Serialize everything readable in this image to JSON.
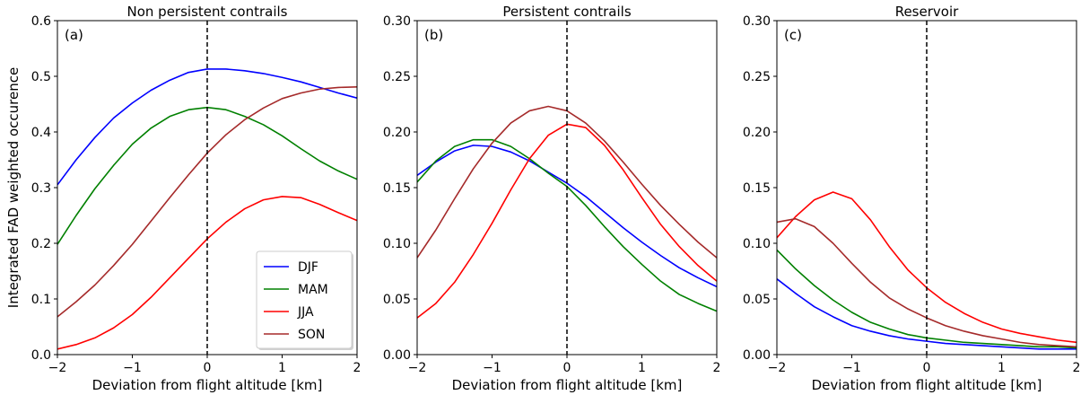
{
  "chart_data": [
    {
      "type": "line",
      "panel_label": "(a)",
      "title": "Non persistent contrails",
      "xlabel": "Deviation from flight altitude [km]",
      "ylabel": "Integrated FAD weighted occurence",
      "xlim": [
        -2,
        2
      ],
      "ylim": [
        0,
        0.6
      ],
      "xticks": [
        -2,
        -1,
        0,
        1,
        2
      ],
      "yticks": [
        0.0,
        0.1,
        0.2,
        0.3,
        0.4,
        0.5,
        0.6
      ],
      "ytick_labels": [
        "0.0",
        "0.1",
        "0.2",
        "0.3",
        "0.4",
        "0.5",
        "0.6"
      ],
      "vline_x": 0,
      "grid": false,
      "legend": {
        "position": "lower-right",
        "entries": [
          "DJF",
          "MAM",
          "JJA",
          "SON"
        ]
      },
      "series": [
        {
          "name": "DJF",
          "color": "#0000ff",
          "x": [
            -2,
            -1.75,
            -1.5,
            -1.25,
            -1,
            -0.75,
            -0.5,
            -0.25,
            0,
            0.25,
            0.5,
            0.75,
            1,
            1.25,
            1.5,
            1.75,
            2
          ],
          "y": [
            0.305,
            0.35,
            0.39,
            0.425,
            0.452,
            0.475,
            0.493,
            0.507,
            0.513,
            0.513,
            0.51,
            0.505,
            0.498,
            0.49,
            0.48,
            0.47,
            0.461
          ]
        },
        {
          "name": "MAM",
          "color": "#008000",
          "x": [
            -2,
            -1.75,
            -1.5,
            -1.25,
            -1,
            -0.75,
            -0.5,
            -0.25,
            0,
            0.25,
            0.5,
            0.75,
            1,
            1.25,
            1.5,
            1.75,
            2
          ],
          "y": [
            0.198,
            0.25,
            0.298,
            0.34,
            0.378,
            0.407,
            0.428,
            0.44,
            0.444,
            0.44,
            0.428,
            0.413,
            0.393,
            0.37,
            0.348,
            0.33,
            0.315
          ]
        },
        {
          "name": "JJA",
          "color": "#ff0000",
          "x": [
            -2,
            -1.75,
            -1.5,
            -1.25,
            -1,
            -0.75,
            -0.5,
            -0.25,
            0,
            0.25,
            0.5,
            0.75,
            1,
            1.25,
            1.5,
            1.75,
            2
          ],
          "y": [
            0.01,
            0.018,
            0.03,
            0.048,
            0.072,
            0.103,
            0.138,
            0.173,
            0.208,
            0.238,
            0.262,
            0.278,
            0.284,
            0.282,
            0.27,
            0.255,
            0.241
          ]
        },
        {
          "name": "SON",
          "color": "#a52a2a",
          "x": [
            -2,
            -1.75,
            -1.5,
            -1.25,
            -1,
            -0.75,
            -0.5,
            -0.25,
            0,
            0.25,
            0.5,
            0.75,
            1,
            1.25,
            1.5,
            1.75,
            2
          ],
          "y": [
            0.068,
            0.095,
            0.125,
            0.16,
            0.198,
            0.24,
            0.282,
            0.323,
            0.362,
            0.395,
            0.422,
            0.443,
            0.46,
            0.47,
            0.477,
            0.48,
            0.481
          ]
        }
      ]
    },
    {
      "type": "line",
      "panel_label": "(b)",
      "title": "Persistent contrails",
      "xlabel": "Deviation from flight altitude [km]",
      "ylabel": "",
      "xlim": [
        -2,
        2
      ],
      "ylim": [
        0,
        0.3
      ],
      "xticks": [
        -2,
        -1,
        0,
        1,
        2
      ],
      "yticks": [
        0.0,
        0.05,
        0.1,
        0.15,
        0.2,
        0.25,
        0.3
      ],
      "ytick_labels": [
        "0.00",
        "0.05",
        "0.10",
        "0.15",
        "0.20",
        "0.25",
        "0.30"
      ],
      "vline_x": 0,
      "grid": false,
      "series": [
        {
          "name": "DJF",
          "color": "#0000ff",
          "x": [
            -2,
            -1.75,
            -1.5,
            -1.25,
            -1,
            -0.75,
            -0.5,
            -0.25,
            0,
            0.25,
            0.5,
            0.75,
            1,
            1.25,
            1.5,
            1.75,
            2
          ],
          "y": [
            0.161,
            0.173,
            0.183,
            0.188,
            0.187,
            0.182,
            0.174,
            0.164,
            0.154,
            0.142,
            0.128,
            0.114,
            0.101,
            0.089,
            0.078,
            0.069,
            0.061
          ]
        },
        {
          "name": "MAM",
          "color": "#008000",
          "x": [
            -2,
            -1.75,
            -1.5,
            -1.25,
            -1,
            -0.75,
            -0.5,
            -0.25,
            0,
            0.25,
            0.5,
            0.75,
            1,
            1.25,
            1.5,
            1.75,
            2
          ],
          "y": [
            0.155,
            0.174,
            0.187,
            0.193,
            0.193,
            0.187,
            0.176,
            0.163,
            0.151,
            0.134,
            0.115,
            0.097,
            0.081,
            0.066,
            0.054,
            0.046,
            0.039
          ]
        },
        {
          "name": "JJA",
          "color": "#ff0000",
          "x": [
            -2,
            -1.75,
            -1.5,
            -1.25,
            -1,
            -0.75,
            -0.5,
            -0.25,
            0,
            0.25,
            0.5,
            0.75,
            1,
            1.25,
            1.5,
            1.75,
            2
          ],
          "y": [
            0.033,
            0.046,
            0.065,
            0.09,
            0.118,
            0.148,
            0.176,
            0.197,
            0.207,
            0.204,
            0.188,
            0.166,
            0.141,
            0.117,
            0.097,
            0.08,
            0.066
          ]
        },
        {
          "name": "SON",
          "color": "#a52a2a",
          "x": [
            -2,
            -1.75,
            -1.5,
            -1.25,
            -1,
            -0.75,
            -0.5,
            -0.25,
            0,
            0.25,
            0.5,
            0.75,
            1,
            1.25,
            1.5,
            1.75,
            2
          ],
          "y": [
            0.087,
            0.112,
            0.14,
            0.167,
            0.19,
            0.208,
            0.219,
            0.223,
            0.219,
            0.208,
            0.192,
            0.173,
            0.153,
            0.134,
            0.117,
            0.101,
            0.087
          ]
        }
      ]
    },
    {
      "type": "line",
      "panel_label": "(c)",
      "title": "Reservoir",
      "xlabel": "Deviation from flight altitude [km]",
      "ylabel": "",
      "xlim": [
        -2,
        2
      ],
      "ylim": [
        0,
        0.3
      ],
      "xticks": [
        -2,
        -1,
        0,
        1,
        2
      ],
      "yticks": [
        0.0,
        0.05,
        0.1,
        0.15,
        0.2,
        0.25,
        0.3
      ],
      "ytick_labels": [
        "0.00",
        "0.05",
        "0.10",
        "0.15",
        "0.20",
        "0.25",
        "0.30"
      ],
      "vline_x": 0,
      "grid": false,
      "series": [
        {
          "name": "DJF",
          "color": "#0000ff",
          "x": [
            -2,
            -1.75,
            -1.5,
            -1.25,
            -1,
            -0.75,
            -0.5,
            -0.25,
            0,
            0.25,
            0.5,
            0.75,
            1,
            1.25,
            1.5,
            1.75,
            2
          ],
          "y": [
            0.068,
            0.055,
            0.043,
            0.034,
            0.026,
            0.021,
            0.017,
            0.014,
            0.012,
            0.01,
            0.009,
            0.008,
            0.007,
            0.006,
            0.005,
            0.005,
            0.005
          ]
        },
        {
          "name": "MAM",
          "color": "#008000",
          "x": [
            -2,
            -1.75,
            -1.5,
            -1.25,
            -1,
            -0.75,
            -0.5,
            -0.25,
            0,
            0.25,
            0.5,
            0.75,
            1,
            1.25,
            1.5,
            1.75,
            2
          ],
          "y": [
            0.094,
            0.077,
            0.062,
            0.049,
            0.038,
            0.029,
            0.023,
            0.018,
            0.015,
            0.013,
            0.011,
            0.01,
            0.009,
            0.008,
            0.007,
            0.007,
            0.006
          ]
        },
        {
          "name": "JJA",
          "color": "#ff0000",
          "x": [
            -2,
            -1.75,
            -1.5,
            -1.25,
            -1,
            -0.75,
            -0.5,
            -0.25,
            0,
            0.25,
            0.5,
            0.75,
            1,
            1.25,
            1.5,
            1.75,
            2
          ],
          "y": [
            0.105,
            0.124,
            0.139,
            0.146,
            0.14,
            0.121,
            0.097,
            0.076,
            0.06,
            0.047,
            0.037,
            0.029,
            0.023,
            0.019,
            0.016,
            0.013,
            0.011
          ]
        },
        {
          "name": "SON",
          "color": "#a52a2a",
          "x": [
            -2,
            -1.75,
            -1.5,
            -1.25,
            -1,
            -0.75,
            -0.5,
            -0.25,
            0,
            0.25,
            0.5,
            0.75,
            1,
            1.25,
            1.5,
            1.75,
            2
          ],
          "y": [
            0.119,
            0.122,
            0.115,
            0.1,
            0.082,
            0.065,
            0.051,
            0.041,
            0.033,
            0.026,
            0.021,
            0.017,
            0.014,
            0.011,
            0.009,
            0.008,
            0.007
          ]
        }
      ]
    }
  ]
}
